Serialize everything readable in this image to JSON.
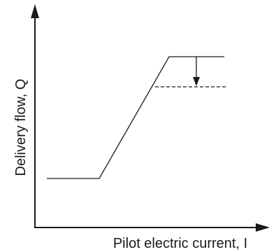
{
  "diagram": {
    "x_axis_label": "Pilot electric current, I",
    "y_axis_label": "Delivery flow, Q",
    "colors": {
      "line": "#1a1a1a",
      "background": "#ffffff"
    }
  }
}
